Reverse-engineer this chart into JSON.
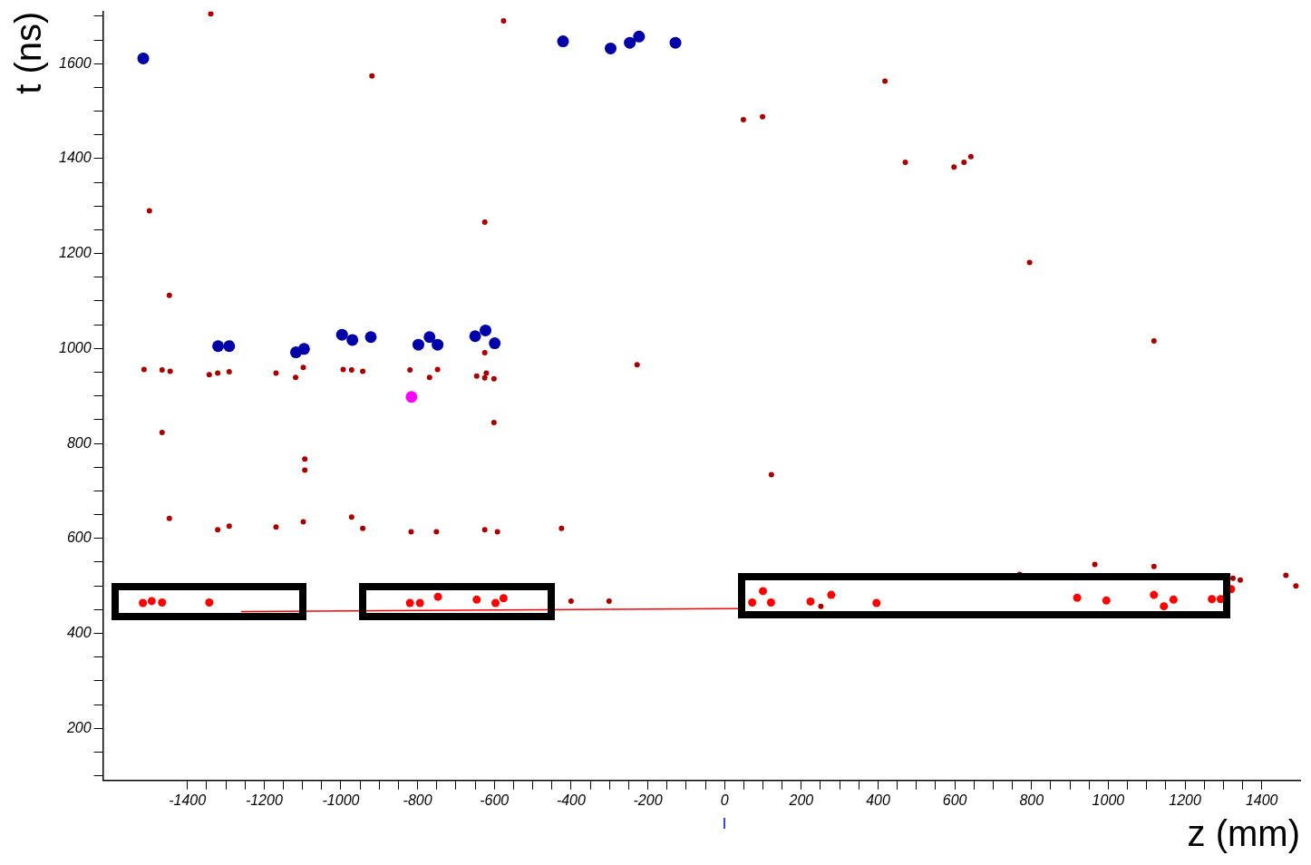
{
  "chart_data": {
    "type": "scatter",
    "xlabel": "z (mm)",
    "ylabel": "t (ns)",
    "xlim": [
      -1620,
      1500
    ],
    "ylim": [
      90,
      1710
    ],
    "xticks": [
      {
        "value": -1400,
        "label": "-1400"
      },
      {
        "value": -1350,
        "label": null
      },
      {
        "value": -1300,
        "label": null
      },
      {
        "value": -1250,
        "label": null
      },
      {
        "value": -1200,
        "label": "-1200"
      },
      {
        "value": -1150,
        "label": null
      },
      {
        "value": -1100,
        "label": null
      },
      {
        "value": -1050,
        "label": null
      },
      {
        "value": -1000,
        "label": "-1000"
      },
      {
        "value": -950,
        "label": null
      },
      {
        "value": -900,
        "label": null
      },
      {
        "value": -850,
        "label": null
      },
      {
        "value": -800,
        "label": "-800"
      },
      {
        "value": -750,
        "label": null
      },
      {
        "value": -700,
        "label": null
      },
      {
        "value": -650,
        "label": null
      },
      {
        "value": -600,
        "label": "-600"
      },
      {
        "value": -550,
        "label": null
      },
      {
        "value": -500,
        "label": null
      },
      {
        "value": -450,
        "label": null
      },
      {
        "value": -400,
        "label": "-400"
      },
      {
        "value": -350,
        "label": null
      },
      {
        "value": -300,
        "label": null
      },
      {
        "value": -250,
        "label": null
      },
      {
        "value": -200,
        "label": "-200"
      },
      {
        "value": -150,
        "label": null
      },
      {
        "value": -100,
        "label": null
      },
      {
        "value": -50,
        "label": null
      },
      0,
      {
        "value": 50,
        "label": null
      },
      {
        "value": 100,
        "label": null
      },
      {
        "value": 150,
        "label": null
      },
      200,
      {
        "value": 250,
        "label": null
      },
      {
        "value": 300,
        "label": null
      },
      {
        "value": 350,
        "label": null
      },
      400,
      {
        "value": 450,
        "label": null
      },
      {
        "value": 500,
        "label": null
      },
      {
        "value": 550,
        "label": null
      },
      600,
      {
        "value": 650,
        "label": null
      },
      {
        "value": 700,
        "label": null
      },
      {
        "value": 750,
        "label": null
      },
      800,
      {
        "value": 850,
        "label": null
      },
      {
        "value": 900,
        "label": null
      },
      {
        "value": 950,
        "label": null
      },
      1000,
      {
        "value": 1050,
        "label": null
      },
      {
        "value": 1100,
        "label": null
      },
      {
        "value": 1150,
        "label": null
      },
      1200,
      {
        "value": 1250,
        "label": null
      },
      {
        "value": 1300,
        "label": null
      },
      {
        "value": 1350,
        "label": null
      },
      1400
    ],
    "yticks": [
      {
        "value": 100,
        "label": null
      },
      {
        "value": 150,
        "label": null
      },
      200,
      {
        "value": 250,
        "label": null
      },
      {
        "value": 300,
        "label": null
      },
      {
        "value": 350,
        "label": null
      },
      400,
      {
        "value": 450,
        "label": null
      },
      {
        "value": 500,
        "label": null
      },
      {
        "value": 550,
        "label": null
      },
      600,
      {
        "value": 650,
        "label": null
      },
      {
        "value": 700,
        "label": null
      },
      {
        "value": 750,
        "label": null
      },
      800,
      {
        "value": 850,
        "label": null
      },
      {
        "value": 900,
        "label": null
      },
      {
        "value": 950,
        "label": null
      },
      1000,
      {
        "value": 1050,
        "label": null
      },
      {
        "value": 1100,
        "label": null
      },
      {
        "value": 1150,
        "label": null
      },
      1200,
      {
        "value": 1250,
        "label": null
      },
      {
        "value": 1300,
        "label": null
      },
      {
        "value": 1350,
        "label": null
      },
      1400,
      {
        "value": 1450,
        "label": null
      },
      {
        "value": 1500,
        "label": null
      },
      {
        "value": 1550,
        "label": null
      },
      1600,
      {
        "value": 1650,
        "label": null
      },
      {
        "value": 1700,
        "label": null
      }
    ],
    "grid": false,
    "legend": false,
    "marker": "circle",
    "series": [
      {
        "color": "#aa0000",
        "x": [
          -1339,
          -576,
          -919,
          -1499,
          -1447,
          -625,
          -1513,
          -1466,
          -1445,
          -1343,
          -1321,
          -1291,
          -1169,
          -1118,
          -1098,
          -994,
          -972,
          -943,
          -820,
          -769,
          -748,
          -625,
          -646,
          -621,
          -625,
          -601,
          -228,
          -1466,
          -601,
          -1094,
          -1094,
          -1447,
          -1321,
          -1291,
          -1169,
          -1098,
          -972,
          -943,
          -817,
          -751,
          -625,
          -592,
          -425,
          -400,
          -301,
          49,
          99,
          418,
          471,
          598,
          624,
          642,
          795,
          1119,
          122,
          769,
          965,
          1119,
          1325,
          1344,
          1463,
          1489,
          251
        ],
        "values": [
          1705,
          1690,
          1574,
          1290,
          1112,
          1266,
          956,
          955,
          952,
          945,
          948,
          951,
          948,
          939,
          960,
          956,
          955,
          952,
          955,
          939,
          956,
          991,
          942,
          948,
          938,
          936,
          966,
          823,
          844,
          767,
          744,
          642,
          618,
          626,
          624,
          635,
          645,
          621,
          614,
          614,
          618,
          614,
          621,
          468,
          468,
          1482,
          1488,
          1563,
          1392,
          1382,
          1392,
          1404,
          1181,
          1016,
          734,
          524,
          545,
          541,
          516,
          512,
          522,
          500,
          457
        ]
      },
      {
        "color": "#ff0000",
        "x": [
          -1516,
          -1493,
          -1466,
          -1343,
          -820,
          -794,
          -747,
          -646,
          -597,
          -576,
          72,
          100,
          121,
          224,
          278,
          396,
          919,
          995,
          1119,
          1145,
          1170,
          1270,
          1293,
          1320
        ],
        "values": [
          464,
          468,
          465,
          465,
          464,
          464,
          477,
          471,
          464,
          474,
          465,
          489,
          465,
          467,
          481,
          464,
          475,
          469,
          481,
          457,
          471,
          472,
          472,
          493
        ]
      },
      {
        "color": "#0000aa",
        "x": [
          -1515,
          -1320,
          -1291,
          -1117,
          -1096,
          -997,
          -970,
          -922,
          -798,
          -769,
          -748,
          -650,
          -623,
          -599,
          -421,
          -297,
          -247,
          -223,
          -128
        ],
        "values": [
          1611,
          1005,
          1005,
          992,
          999,
          1029,
          1018,
          1024,
          1008,
          1024,
          1008,
          1026,
          1038,
          1011,
          1647,
          1632,
          1644,
          1657,
          1644
        ]
      },
      {
        "color": "#ff00ff",
        "x": [
          -816
        ],
        "values": [
          898
        ]
      },
      {
        "type": "line",
        "marker": "none",
        "color": "#ff0000",
        "x": [
          -1260,
          35
        ],
        "values": [
          446,
          452
        ]
      }
    ]
  }
}
